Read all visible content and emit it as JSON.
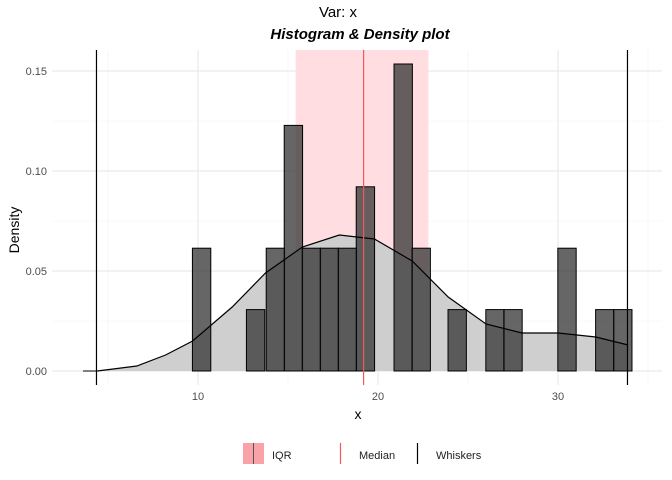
{
  "chart_data": {
    "type": "bar",
    "title": "Var: x",
    "subtitle": "Histogram & Density plot",
    "xlabel": "x",
    "ylabel": "Density",
    "xlim": [
      3.5,
      35
    ],
    "ylim": [
      0,
      0.16
    ],
    "grid": true,
    "x_ticks": [
      10,
      20,
      30
    ],
    "y_ticks": [
      0,
      0.05,
      0.1,
      0.15
    ],
    "y_tick_labels": [
      "0.00",
      "0.05",
      "0.10",
      "0.15"
    ],
    "binwidth": 1.02,
    "histogram": {
      "centers": [
        10.2,
        13.2,
        14.3,
        15.3,
        16.3,
        17.3,
        18.3,
        19.3,
        21.4,
        22.4,
        24.4,
        26.5,
        27.5,
        30.5,
        32.6,
        33.6
      ],
      "density": [
        0.0614,
        0.0307,
        0.0614,
        0.1228,
        0.0614,
        0.0614,
        0.0614,
        0.0921,
        0.1535,
        0.0614,
        0.0307,
        0.0307,
        0.0307,
        0.0614,
        0.0307,
        0.0307
      ]
    },
    "density_curve": {
      "x": [
        4.4,
        6.6,
        8.2,
        9.7,
        11.9,
        13.75,
        15.8,
        17.85,
        19.8,
        21.9,
        23.9,
        26.0,
        28.0,
        30.0,
        32.1,
        33.9
      ],
      "y": [
        0.0,
        0.0025,
        0.008,
        0.015,
        0.032,
        0.049,
        0.062,
        0.068,
        0.066,
        0.055,
        0.037,
        0.0235,
        0.019,
        0.019,
        0.017,
        0.013
      ]
    },
    "iqr": [
      15.425,
      22.8
    ],
    "median": 19.2,
    "whiskers": [
      4.36,
      33.86
    ],
    "legend": {
      "position": "bottom",
      "items": [
        "IQR",
        "Median",
        "Whiskers"
      ]
    },
    "colors": {
      "bar": "#333333",
      "density_fill": "#cccccc",
      "iqr": "#ffdde0",
      "median": "#f0595f",
      "whisker": "#000000",
      "legend_iqr": "#f9a3a8"
    }
  }
}
